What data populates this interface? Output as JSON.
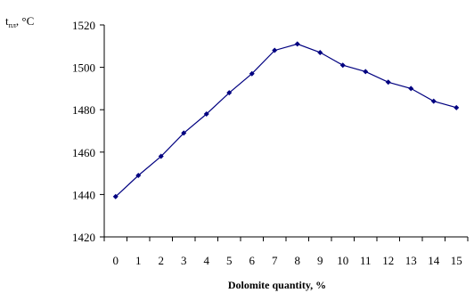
{
  "chart_data": {
    "type": "line",
    "xlabel": "Dolomite quantity, %",
    "ylabel": "t",
    "ylabel_subscript": "пл",
    "ylabel_unit": ", °C",
    "x": [
      0,
      1,
      2,
      3,
      4,
      5,
      6,
      7,
      8,
      9,
      10,
      11,
      12,
      13,
      14,
      15
    ],
    "categories": [
      "0",
      "1",
      "2",
      "3",
      "4",
      "5",
      "6",
      "7",
      "8",
      "9",
      "10",
      "11",
      "12",
      "13",
      "14",
      "15"
    ],
    "ylim": [
      1420,
      1520
    ],
    "yticks": [
      1420,
      1440,
      1460,
      1480,
      1500,
      1520
    ],
    "series": [
      {
        "values": [
          1439,
          1449,
          1458,
          1469,
          1478,
          1488,
          1497,
          1508,
          1511,
          1507,
          1501,
          1498,
          1493,
          1490,
          1484,
          1481
        ],
        "color": "#000080",
        "marker": "diamond"
      }
    ],
    "grid": false,
    "legend": "none"
  }
}
